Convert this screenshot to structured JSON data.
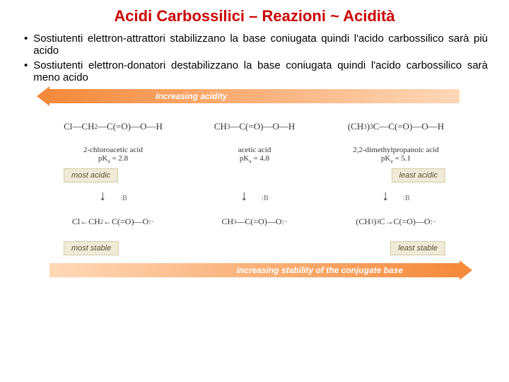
{
  "title": "Acidi Carbossilici – Reazioni ~ Acidità",
  "bullets": [
    "Sostiutenti elettron-attrattori stabilizzano la base coniugata quindi l'acido carbossilico sarà più acido",
    "Sostiutenti elettron-donatori destabilizzano la base coniugata quindi l'acido carbossilico sarà meno acido"
  ],
  "arrow_top_label": "Increasing acidity",
  "arrow_bottom_label": "Increasing stability of the conjugate base",
  "acids": [
    {
      "structure_html": "Cl—CH<sub>2</sub>—C(=O)—O—H",
      "name": "2-chloroacetic acid",
      "pka_label": "pK",
      "pka_sub": "a",
      "pka_eq": " = 2.8",
      "base_html": "Cl←CH<sub>2</sub>←C(=O)—O:<sup>−</sup>"
    },
    {
      "structure_html": "CH<sub>3</sub>—C(=O)—O—H",
      "name": "acetic acid",
      "pka_label": "pK",
      "pka_sub": "a",
      "pka_eq": " = 4.8",
      "base_html": "CH<sub>3</sub>—C(=O)—O:<sup>−</sup>"
    },
    {
      "structure_html": "(CH<sub>3</sub>)<sub>3</sub>C—C(=O)—O—H",
      "name": "2,2-dimethylpropanoic acid",
      "pka_label": "pK",
      "pka_sub": "a",
      "pka_eq": " = 5.1",
      "base_html": "(CH<sub>3</sub>)<sub>3</sub>C→C(=O)—O:<sup>−</sup>"
    }
  ],
  "tags": {
    "most_acidic": "most acidic",
    "least_acidic": "least acidic",
    "most_stable": "most stable",
    "least_stable": "least stable"
  },
  "b_label": ":B",
  "colors": {
    "title": "#cc0000",
    "arrow_light": "#ffd8b8",
    "arrow_dark": "#f58a3c",
    "tag_bg": "#f0ead8",
    "tag_border": "#d4cba8"
  }
}
